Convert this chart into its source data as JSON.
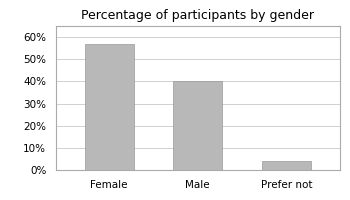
{
  "title": "Percentage of participants by gender",
  "categories": [
    "Female",
    "Male",
    "Prefer not"
  ],
  "values": [
    0.57,
    0.4,
    0.04
  ],
  "bar_color": "#b8b8b8",
  "bar_edge_color": "#999999",
  "ylim": [
    0,
    0.65
  ],
  "yticks": [
    0.0,
    0.1,
    0.2,
    0.3,
    0.4,
    0.5,
    0.6
  ],
  "title_fontsize": 9,
  "tick_fontsize": 7.5,
  "background_color": "#ffffff",
  "grid_color": "#d0d0d0",
  "outer_border_color": "#aaaaaa"
}
